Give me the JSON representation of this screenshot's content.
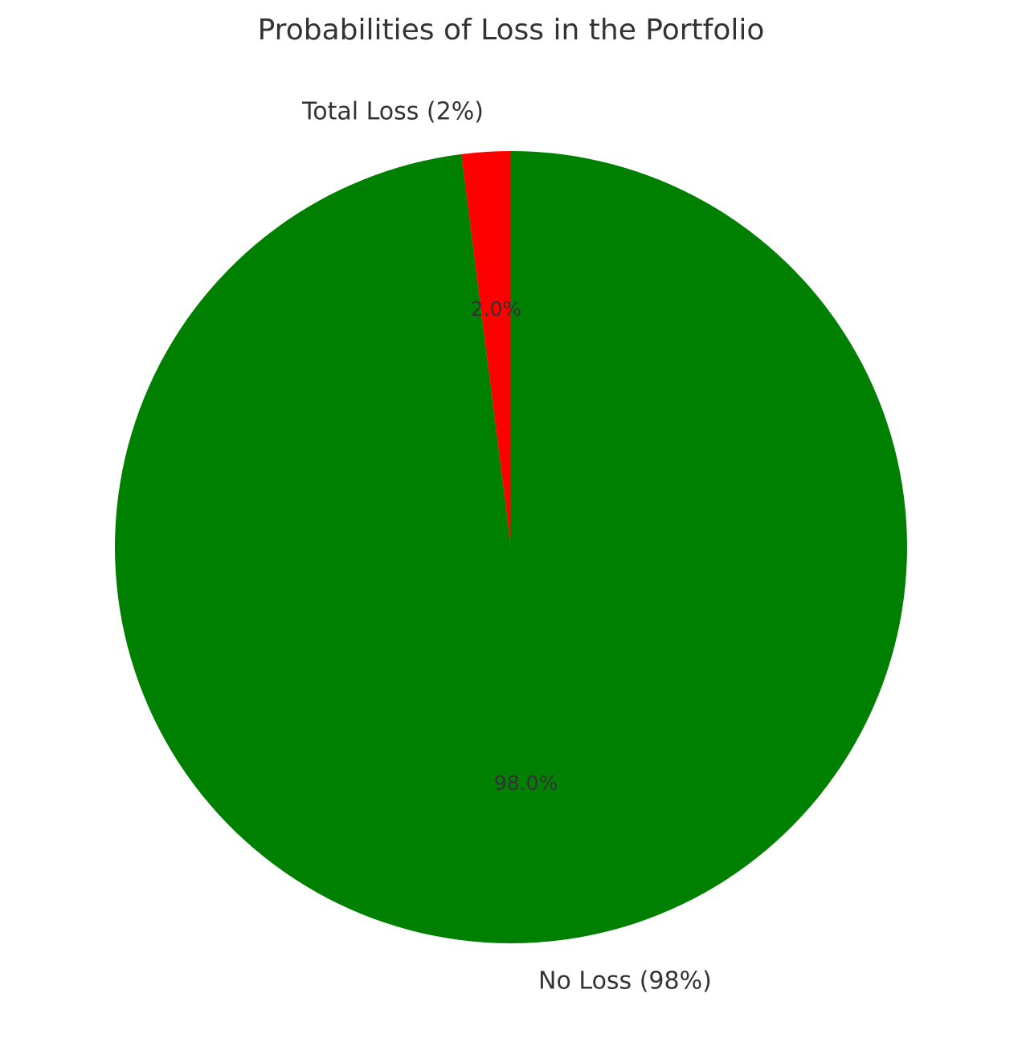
{
  "chart_data": {
    "type": "pie",
    "title": "Probabilities of Loss in the Portfolio",
    "slices": [
      {
        "label": "Total Loss (2%)",
        "value": 2.0,
        "pct_label": "2.0%",
        "color": "#ff0000"
      },
      {
        "label": "No Loss (98%)",
        "value": 98.0,
        "pct_label": "98.0%",
        "color": "#008000"
      }
    ],
    "start_angle_deg": 90,
    "direction": "counterclockwise"
  }
}
